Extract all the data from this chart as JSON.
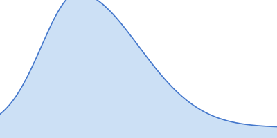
{
  "fill_color": "#cce0f5",
  "line_color": "#4477cc",
  "line_width": 1.2,
  "background_color": "#ffffff",
  "figsize": [
    4.0,
    2.0
  ],
  "dpi": 100,
  "xlim": [
    0,
    1.0
  ],
  "ylim": [
    -0.08,
    0.95
  ]
}
